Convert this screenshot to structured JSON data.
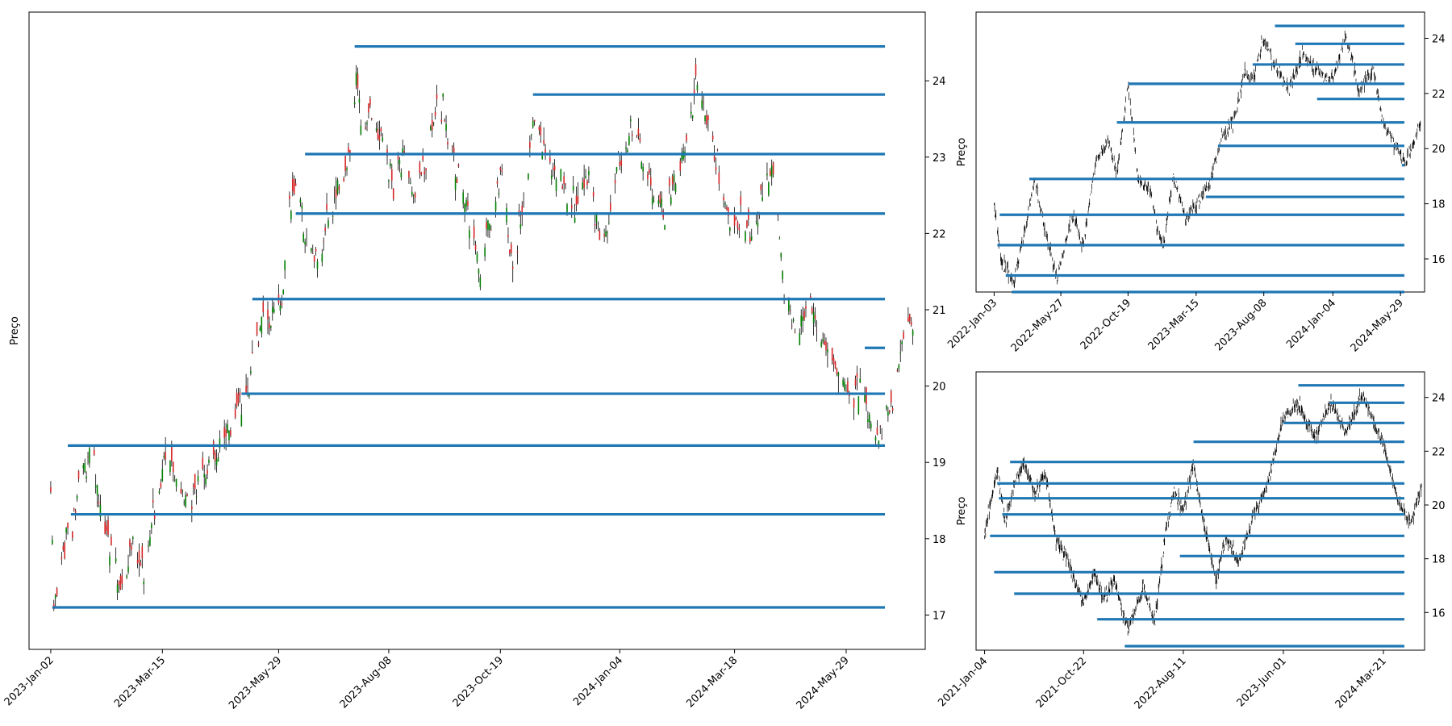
{
  "chart_data": [
    {
      "id": "main",
      "type": "candlestick",
      "ylabel": "Preço",
      "ylim": [
        16.55,
        24.9
      ],
      "x_range": [
        "2022-12-19",
        "2024-07-19"
      ],
      "x_ticks": [
        "2023-Jan-02",
        "2023-Mar-15",
        "2023-May-29",
        "2023-Aug-08",
        "2023-Oct-19",
        "2024-Jan-04",
        "2024-Mar-18",
        "2024-May-29"
      ],
      "y_ticks": [
        17,
        18,
        19,
        20,
        21,
        22,
        23,
        24
      ],
      "candle_colors": {
        "up": "#008000",
        "down": "#d62728"
      },
      "level_color": "#1f77b4",
      "levels": [
        {
          "start": "2023-01-03",
          "y": 17.1
        },
        {
          "start": "2023-01-15",
          "y": 18.32
        },
        {
          "start": "2023-01-13",
          "y": 19.22
        },
        {
          "start": "2023-05-05",
          "y": 19.9
        },
        {
          "start": "2023-05-12",
          "y": 21.14
        },
        {
          "start": "2023-06-09",
          "y": 22.26
        },
        {
          "start": "2023-06-15",
          "y": 23.04
        },
        {
          "start": "2023-11-09",
          "y": 23.82
        },
        {
          "start": "2023-07-17",
          "y": 24.45
        },
        {
          "start": "2024-06-10",
          "y": 20.5
        }
      ],
      "price_path": [
        [
          "2023-01-02",
          18.5
        ],
        [
          "2023-01-04",
          17.2
        ],
        [
          "2023-01-12",
          18.0
        ],
        [
          "2023-01-20",
          18.6
        ],
        [
          "2023-01-27",
          19.1
        ],
        [
          "2023-02-03",
          18.5
        ],
        [
          "2023-02-10",
          17.8
        ],
        [
          "2023-02-17",
          17.3
        ],
        [
          "2023-02-24",
          17.9
        ],
        [
          "2023-03-03",
          17.5
        ],
        [
          "2023-03-10",
          18.5
        ],
        [
          "2023-03-17",
          19.1
        ],
        [
          "2023-03-24",
          18.8
        ],
        [
          "2023-03-31",
          18.4
        ],
        [
          "2023-04-07",
          18.7
        ],
        [
          "2023-04-14",
          19.0
        ],
        [
          "2023-04-21",
          19.3
        ],
        [
          "2023-04-28",
          19.5
        ],
        [
          "2023-05-05",
          19.8
        ],
        [
          "2023-05-10",
          20.0
        ],
        [
          "2023-05-15",
          20.8
        ],
        [
          "2023-05-22",
          20.9
        ],
        [
          "2023-05-29",
          21.0
        ],
        [
          "2023-06-01",
          21.2
        ],
        [
          "2023-06-05",
          22.4
        ],
        [
          "2023-06-09",
          22.6
        ],
        [
          "2023-06-16",
          21.9
        ],
        [
          "2023-06-23",
          21.6
        ],
        [
          "2023-06-30",
          22.3
        ],
        [
          "2023-07-07",
          22.6
        ],
        [
          "2023-07-14",
          23.0
        ],
        [
          "2023-07-18",
          24.1
        ],
        [
          "2023-07-21",
          23.3
        ],
        [
          "2023-07-28",
          23.5
        ],
        [
          "2023-08-04",
          23.2
        ],
        [
          "2023-08-11",
          22.6
        ],
        [
          "2023-08-18",
          23.0
        ],
        [
          "2023-08-25",
          22.4
        ],
        [
          "2023-09-01",
          22.9
        ],
        [
          "2023-09-08",
          23.9
        ],
        [
          "2023-09-15",
          23.3
        ],
        [
          "2023-09-22",
          22.7
        ],
        [
          "2023-09-29",
          22.3
        ],
        [
          "2023-10-06",
          21.5
        ],
        [
          "2023-10-13",
          22.2
        ],
        [
          "2023-10-20",
          22.8
        ],
        [
          "2023-10-27",
          21.5
        ],
        [
          "2023-11-03",
          22.4
        ],
        [
          "2023-11-10",
          23.5
        ],
        [
          "2023-11-17",
          23.1
        ],
        [
          "2023-11-24",
          22.8
        ],
        [
          "2023-12-01",
          22.6
        ],
        [
          "2023-12-08",
          22.3
        ],
        [
          "2023-12-15",
          22.6
        ],
        [
          "2023-12-22",
          21.9
        ],
        [
          "2023-12-29",
          22.3
        ],
        [
          "2024-01-05",
          23.0
        ],
        [
          "2024-01-12",
          23.5
        ],
        [
          "2024-01-19",
          23.0
        ],
        [
          "2024-01-26",
          22.5
        ],
        [
          "2024-02-02",
          22.2
        ],
        [
          "2024-02-09",
          22.8
        ],
        [
          "2024-02-16",
          23.2
        ],
        [
          "2024-02-23",
          24.0
        ],
        [
          "2024-03-01",
          23.4
        ],
        [
          "2024-03-08",
          22.8
        ],
        [
          "2024-03-15",
          22.1
        ],
        [
          "2024-03-22",
          22.2
        ],
        [
          "2024-03-29",
          22.0
        ],
        [
          "2024-04-05",
          22.4
        ],
        [
          "2024-04-10",
          22.9
        ],
        [
          "2024-04-15",
          22.2
        ],
        [
          "2024-04-19",
          21.2
        ],
        [
          "2024-04-26",
          20.8
        ],
        [
          "2024-05-03",
          21.0
        ],
        [
          "2024-05-10",
          20.8
        ],
        [
          "2024-05-17",
          20.4
        ],
        [
          "2024-05-24",
          20.1
        ],
        [
          "2024-05-31",
          19.8
        ],
        [
          "2024-06-07",
          20.1
        ],
        [
          "2024-06-14",
          19.5
        ],
        [
          "2024-06-21",
          19.3
        ],
        [
          "2024-06-28",
          19.8
        ],
        [
          "2024-07-03",
          20.5
        ],
        [
          "2024-07-08",
          20.9
        ],
        [
          "2024-07-12",
          20.8
        ]
      ]
    },
    {
      "id": "top-right",
      "type": "candlestick",
      "ylabel": "Preço",
      "ylim": [
        14.8,
        24.95
      ],
      "x_range": [
        "2021-11-25",
        "2024-07-20"
      ],
      "x_ticks": [
        "2022-Jan-03",
        "2022-May-27",
        "2022-Oct-19",
        "2023-Mar-15",
        "2023-Aug-08",
        "2024-Jan-04",
        "2024-May-29"
      ],
      "y_ticks": [
        16,
        18,
        20,
        22,
        24
      ],
      "level_color": "#1f77b4",
      "levels": [
        {
          "start": "2022-01-10",
          "y": 16.5
        },
        {
          "start": "2022-01-28",
          "y": 15.4
        },
        {
          "start": "2022-02-10",
          "y": 14.8
        },
        {
          "start": "2022-01-15",
          "y": 17.6
        },
        {
          "start": "2022-03-20",
          "y": 18.9
        },
        {
          "start": "2022-09-25",
          "y": 20.95
        },
        {
          "start": "2022-10-20",
          "y": 22.35
        },
        {
          "start": "2023-05-01",
          "y": 20.1
        },
        {
          "start": "2023-07-15",
          "y": 23.05
        },
        {
          "start": "2023-09-01",
          "y": 24.45
        },
        {
          "start": "2023-10-15",
          "y": 23.8
        },
        {
          "start": "2023-12-01",
          "y": 21.8
        },
        {
          "start": "2023-04-05",
          "y": 18.25
        },
        {
          "start": "2024-06-01",
          "y": 19.4
        }
      ],
      "price_path": [
        [
          "2022-01-03",
          17.8
        ],
        [
          "2022-01-20",
          15.9
        ],
        [
          "2022-02-15",
          15.2
        ],
        [
          "2022-03-15",
          17.5
        ],
        [
          "2022-04-01",
          18.9
        ],
        [
          "2022-04-20",
          17.2
        ],
        [
          "2022-05-20",
          15.3
        ],
        [
          "2022-06-20",
          17.6
        ],
        [
          "2022-07-15",
          16.5
        ],
        [
          "2022-08-10",
          19.5
        ],
        [
          "2022-09-05",
          20.3
        ],
        [
          "2022-09-25",
          19.1
        ],
        [
          "2022-10-19",
          22.3
        ],
        [
          "2022-11-10",
          18.9
        ],
        [
          "2022-12-05",
          18.5
        ],
        [
          "2023-01-01",
          16.3
        ],
        [
          "2023-01-25",
          19.0
        ],
        [
          "2023-02-20",
          17.5
        ],
        [
          "2023-03-15",
          18.0
        ],
        [
          "2023-04-15",
          18.8
        ],
        [
          "2023-05-10",
          20.5
        ],
        [
          "2023-06-05",
          21.0
        ],
        [
          "2023-06-25",
          22.7
        ],
        [
          "2023-07-15",
          22.5
        ],
        [
          "2023-08-08",
          24.0
        ],
        [
          "2023-09-01",
          23.0
        ],
        [
          "2023-10-01",
          22.2
        ],
        [
          "2023-11-01",
          23.4
        ],
        [
          "2023-12-01",
          22.8
        ],
        [
          "2024-01-04",
          22.5
        ],
        [
          "2024-02-01",
          24.1
        ],
        [
          "2024-03-01",
          22.1
        ],
        [
          "2024-04-01",
          22.9
        ],
        [
          "2024-04-20",
          21.0
        ],
        [
          "2024-05-15",
          20.2
        ],
        [
          "2024-06-10",
          19.5
        ],
        [
          "2024-07-12",
          20.9
        ]
      ]
    },
    {
      "id": "bottom-right",
      "type": "candlestick",
      "ylabel": "Preço",
      "ylim": [
        14.6,
        24.95
      ],
      "x_range": [
        "2020-12-10",
        "2024-07-20"
      ],
      "x_ticks": [
        "2021-Jan-04",
        "2021-Oct-22",
        "2022-Aug-11",
        "2023-Jun-01",
        "2024-Mar-21"
      ],
      "y_ticks": [
        16,
        18,
        20,
        22,
        24
      ],
      "level_color": "#1f77b4",
      "levels": [
        {
          "start": "2021-02-01",
          "y": 17.5
        },
        {
          "start": "2021-01-20",
          "y": 18.85
        },
        {
          "start": "2021-02-25",
          "y": 19.65
        },
        {
          "start": "2021-02-15",
          "y": 20.25
        },
        {
          "start": "2021-02-10",
          "y": 20.8
        },
        {
          "start": "2021-03-20",
          "y": 21.6
        },
        {
          "start": "2021-04-01",
          "y": 16.7
        },
        {
          "start": "2021-12-01",
          "y": 15.75
        },
        {
          "start": "2022-02-20",
          "y": 14.75
        },
        {
          "start": "2022-08-01",
          "y": 18.1
        },
        {
          "start": "2022-09-10",
          "y": 22.35
        },
        {
          "start": "2023-06-01",
          "y": 23.05
        },
        {
          "start": "2023-07-15",
          "y": 24.45
        },
        {
          "start": "2023-10-15",
          "y": 23.8
        }
      ],
      "price_path": [
        [
          "2021-01-04",
          19.0
        ],
        [
          "2021-02-10",
          21.3
        ],
        [
          "2021-03-05",
          19.4
        ],
        [
          "2021-04-01",
          20.7
        ],
        [
          "2021-05-01",
          21.6
        ],
        [
          "2021-06-01",
          20.4
        ],
        [
          "2021-07-01",
          21.2
        ],
        [
          "2021-08-01",
          18.7
        ],
        [
          "2021-09-01",
          18.1
        ],
        [
          "2021-10-22",
          16.3
        ],
        [
          "2021-11-20",
          17.5
        ],
        [
          "2021-12-20",
          16.5
        ],
        [
          "2022-01-20",
          17.2
        ],
        [
          "2022-03-01",
          15.4
        ],
        [
          "2022-04-15",
          16.9
        ],
        [
          "2022-05-20",
          15.7
        ],
        [
          "2022-06-20",
          19.0
        ],
        [
          "2022-07-15",
          20.5
        ],
        [
          "2022-08-11",
          19.8
        ],
        [
          "2022-09-10",
          21.5
        ],
        [
          "2022-10-15",
          19.0
        ],
        [
          "2022-11-15",
          17.2
        ],
        [
          "2022-12-15",
          18.8
        ],
        [
          "2023-01-20",
          17.8
        ],
        [
          "2023-03-01",
          19.5
        ],
        [
          "2023-04-15",
          20.8
        ],
        [
          "2023-06-01",
          23.2
        ],
        [
          "2023-07-15",
          23.8
        ],
        [
          "2023-09-01",
          22.5
        ],
        [
          "2023-10-20",
          23.8
        ],
        [
          "2023-12-01",
          22.7
        ],
        [
          "2024-01-20",
          24.1
        ],
        [
          "2024-03-01",
          22.8
        ],
        [
          "2024-03-21",
          22.3
        ],
        [
          "2024-05-01",
          20.2
        ],
        [
          "2024-06-10",
          19.3
        ],
        [
          "2024-07-12",
          20.8
        ]
      ]
    }
  ]
}
